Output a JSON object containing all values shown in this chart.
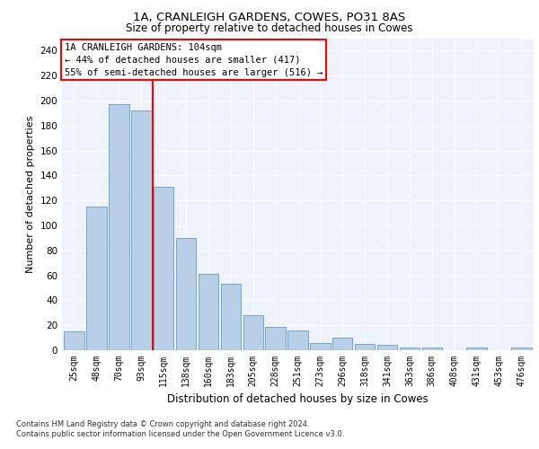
{
  "title": "1A, CRANLEIGH GARDENS, COWES, PO31 8AS",
  "subtitle": "Size of property relative to detached houses in Cowes",
  "xlabel": "Distribution of detached houses by size in Cowes",
  "ylabel": "Number of detached properties",
  "categories": [
    "25sqm",
    "48sqm",
    "70sqm",
    "93sqm",
    "115sqm",
    "138sqm",
    "160sqm",
    "183sqm",
    "205sqm",
    "228sqm",
    "251sqm",
    "273sqm",
    "296sqm",
    "318sqm",
    "341sqm",
    "363sqm",
    "386sqm",
    "408sqm",
    "431sqm",
    "453sqm",
    "476sqm"
  ],
  "bar_heights": [
    15,
    115,
    197,
    192,
    131,
    90,
    61,
    53,
    28,
    19,
    16,
    6,
    10,
    5,
    4,
    2,
    2,
    0,
    2,
    0,
    2
  ],
  "bar_color": "#b8cfe8",
  "bar_edge_color": "#6699cc",
  "vline_color": "red",
  "vline_x": 3.5,
  "annotation_text": "1A CRANLEIGH GARDENS: 104sqm\n← 44% of detached houses are smaller (417)\n55% of semi-detached houses are larger (516) →",
  "ylim": [
    0,
    250
  ],
  "yticks": [
    0,
    20,
    40,
    60,
    80,
    100,
    120,
    140,
    160,
    180,
    200,
    220,
    240
  ],
  "footnote": "Contains HM Land Registry data © Crown copyright and database right 2024.\nContains public sector information licensed under the Open Government Licence v3.0.",
  "bg_color": "#eef2fa"
}
